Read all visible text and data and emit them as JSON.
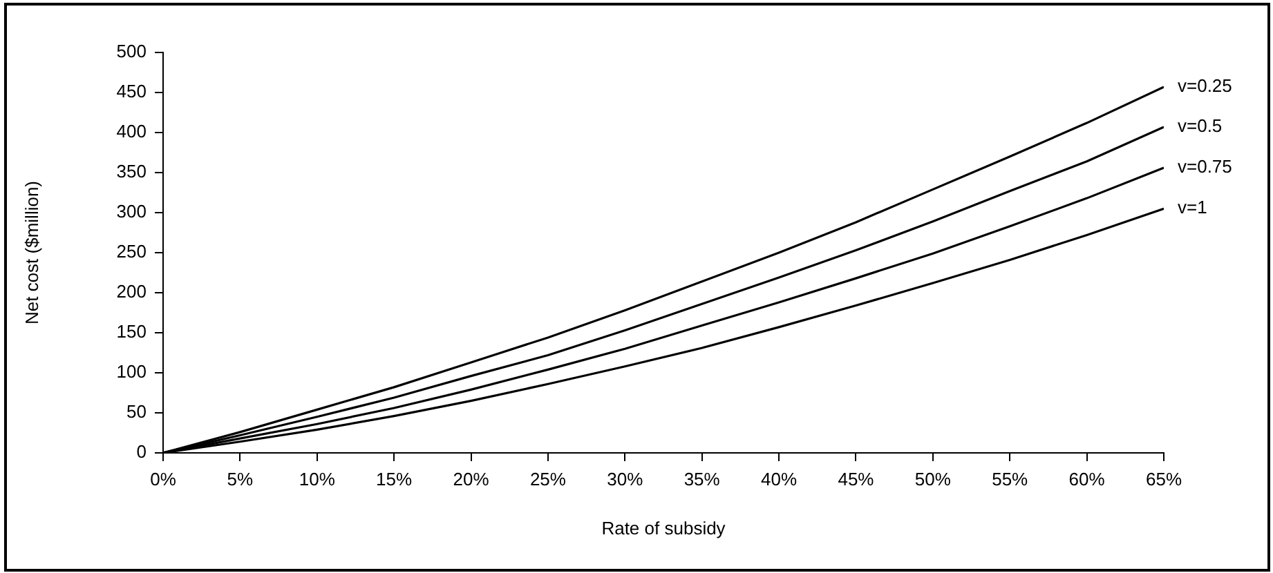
{
  "chart_data": {
    "type": "line",
    "xlabel": "Rate of subsidy",
    "ylabel": "Net cost ($million)",
    "x": [
      0,
      5,
      10,
      15,
      20,
      25,
      30,
      35,
      40,
      45,
      50,
      55,
      60,
      65
    ],
    "series": [
      {
        "name": "v=0.25",
        "color": "#000000",
        "values": [
          0,
          26,
          54,
          82,
          113,
          144,
          178,
          214,
          250,
          288,
          329,
          370,
          412,
          457
        ]
      },
      {
        "name": "v=0.5",
        "color": "#000000",
        "values": [
          0,
          22,
          45,
          69,
          96,
          122,
          153,
          186,
          219,
          253,
          289,
          327,
          364,
          407
        ]
      },
      {
        "name": "v=0.75",
        "color": "#000000",
        "values": [
          0,
          18,
          36,
          56,
          79,
          104,
          130,
          159,
          188,
          218,
          249,
          283,
          318,
          356
        ]
      },
      {
        "name": "v=1",
        "color": "#000000",
        "values": [
          0,
          14,
          29,
          46,
          65,
          86,
          108,
          131,
          157,
          184,
          212,
          241,
          272,
          305
        ]
      }
    ],
    "xlim": [
      0,
      65
    ],
    "xticks": [
      {
        "value": 0,
        "label": "0%"
      },
      {
        "value": 5,
        "label": "5%"
      },
      {
        "value": 10,
        "label": "10%"
      },
      {
        "value": 15,
        "label": "15%"
      },
      {
        "value": 20,
        "label": "20%"
      },
      {
        "value": 25,
        "label": "25%"
      },
      {
        "value": 30,
        "label": "30%"
      },
      {
        "value": 35,
        "label": "35%"
      },
      {
        "value": 40,
        "label": "40%"
      },
      {
        "value": 45,
        "label": "45%"
      },
      {
        "value": 50,
        "label": "50%"
      },
      {
        "value": 55,
        "label": "55%"
      },
      {
        "value": 60,
        "label": "60%"
      },
      {
        "value": 65,
        "label": "65%"
      }
    ],
    "ylim": [
      0,
      500
    ],
    "yticks": [
      0,
      50,
      100,
      150,
      200,
      250,
      300,
      350,
      400,
      450,
      500
    ],
    "grid": false,
    "legend": false,
    "marker": "none",
    "line_style": "solid"
  }
}
